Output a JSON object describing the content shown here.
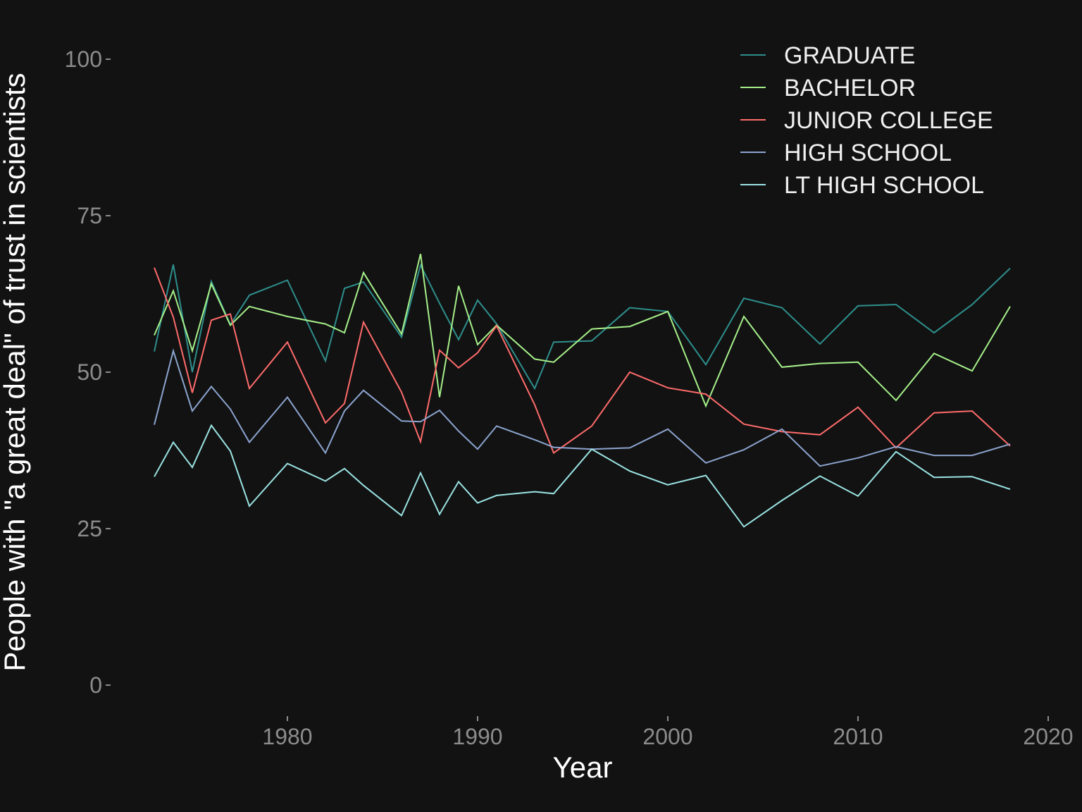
{
  "chart_data": {
    "type": "line",
    "xlabel": "Year",
    "ylabel": "People with \"a great deal\" of trust in scientists",
    "xlim": [
      1972,
      2020
    ],
    "ylim": [
      0,
      100
    ],
    "xticks": [
      1980,
      1990,
      2000,
      2010,
      2020
    ],
    "yticks": [
      0,
      25,
      50,
      75,
      100
    ],
    "grid": false,
    "legend_position": "top-right",
    "series": [
      {
        "name": "GRADUATE",
        "color": "#2e8f8c",
        "x": [
          1973,
          1974,
          1975,
          1976,
          1977,
          1978,
          1980,
          1982,
          1983,
          1984,
          1986,
          1987,
          1988,
          1989,
          1990,
          1991,
          1993,
          1994,
          1996,
          1998,
          2000,
          2002,
          2004,
          2006,
          2008,
          2010,
          2012,
          2014,
          2016,
          2018
        ],
        "y": [
          53.3,
          67.2,
          50.0,
          64.5,
          57.6,
          62.3,
          64.7,
          51.8,
          63.4,
          64.4,
          55.6,
          67.1,
          61.0,
          55.2,
          61.5,
          57.7,
          47.4,
          54.8,
          55.0,
          60.3,
          59.7,
          51.2,
          61.8,
          60.3,
          54.5,
          60.6,
          60.8,
          56.3,
          60.8,
          66.6
        ]
      },
      {
        "name": "BACHELOR",
        "color": "#a6f08a",
        "x": [
          1973,
          1974,
          1975,
          1976,
          1977,
          1978,
          1980,
          1982,
          1983,
          1984,
          1986,
          1987,
          1988,
          1989,
          1990,
          1991,
          1993,
          1994,
          1996,
          1998,
          2000,
          2002,
          2004,
          2006,
          2008,
          2010,
          2012,
          2014,
          2016,
          2018
        ],
        "y": [
          55.9,
          63.0,
          53.4,
          64.1,
          57.5,
          60.5,
          58.9,
          57.7,
          56.3,
          65.9,
          56.1,
          68.9,
          46.0,
          63.8,
          54.4,
          57.5,
          52.1,
          51.6,
          56.9,
          57.3,
          59.7,
          44.6,
          58.9,
          50.8,
          51.4,
          51.6,
          45.5,
          53.0,
          50.2,
          60.5
        ]
      },
      {
        "name": "JUNIOR COLLEGE",
        "color": "#ff6b6b",
        "x": [
          1973,
          1974,
          1975,
          1976,
          1977,
          1978,
          1980,
          1982,
          1983,
          1984,
          1986,
          1987,
          1988,
          1989,
          1990,
          1991,
          1993,
          1994,
          1996,
          1998,
          2000,
          2002,
          2004,
          2006,
          2008,
          2010,
          2012,
          2014,
          2016,
          2018
        ],
        "y": [
          66.7,
          58.8,
          46.7,
          58.3,
          59.3,
          47.4,
          54.8,
          41.9,
          45.0,
          58.0,
          46.8,
          38.9,
          53.5,
          50.7,
          53.1,
          57.4,
          44.8,
          37.1,
          41.4,
          50.0,
          47.5,
          46.5,
          41.7,
          40.5,
          40.0,
          44.4,
          37.9,
          43.5,
          43.8,
          38.2
        ]
      },
      {
        "name": "HIGH SCHOOL",
        "color": "#8ca4cf",
        "x": [
          1973,
          1974,
          1975,
          1976,
          1977,
          1978,
          1980,
          1982,
          1983,
          1984,
          1986,
          1987,
          1988,
          1989,
          1990,
          1991,
          1993,
          1994,
          1996,
          1998,
          2000,
          2002,
          2004,
          2006,
          2008,
          2010,
          2012,
          2014,
          2016,
          2018
        ],
        "y": [
          41.6,
          53.4,
          43.8,
          47.7,
          44.1,
          38.8,
          46.0,
          37.1,
          43.8,
          47.1,
          42.2,
          42.1,
          43.9,
          40.6,
          37.7,
          41.4,
          39.2,
          38.0,
          37.7,
          37.9,
          40.9,
          35.5,
          37.6,
          40.9,
          35.0,
          36.3,
          38.1,
          36.7,
          36.7,
          38.5
        ]
      },
      {
        "name": "LT HIGH SCHOOL",
        "color": "#9be3e3",
        "x": [
          1973,
          1974,
          1975,
          1976,
          1977,
          1978,
          1980,
          1982,
          1983,
          1984,
          1986,
          1987,
          1988,
          1989,
          1990,
          1991,
          1993,
          1994,
          1996,
          1998,
          2000,
          2002,
          2004,
          2006,
          2008,
          2010,
          2012,
          2014,
          2016,
          2018
        ],
        "y": [
          33.3,
          38.8,
          34.8,
          41.5,
          37.4,
          28.6,
          35.4,
          32.6,
          34.6,
          31.9,
          27.1,
          33.9,
          27.3,
          32.5,
          29.1,
          30.3,
          30.9,
          30.6,
          37.7,
          34.2,
          32.0,
          33.5,
          25.3,
          29.5,
          33.4,
          30.2,
          37.3,
          33.2,
          33.3,
          31.3
        ]
      }
    ]
  }
}
